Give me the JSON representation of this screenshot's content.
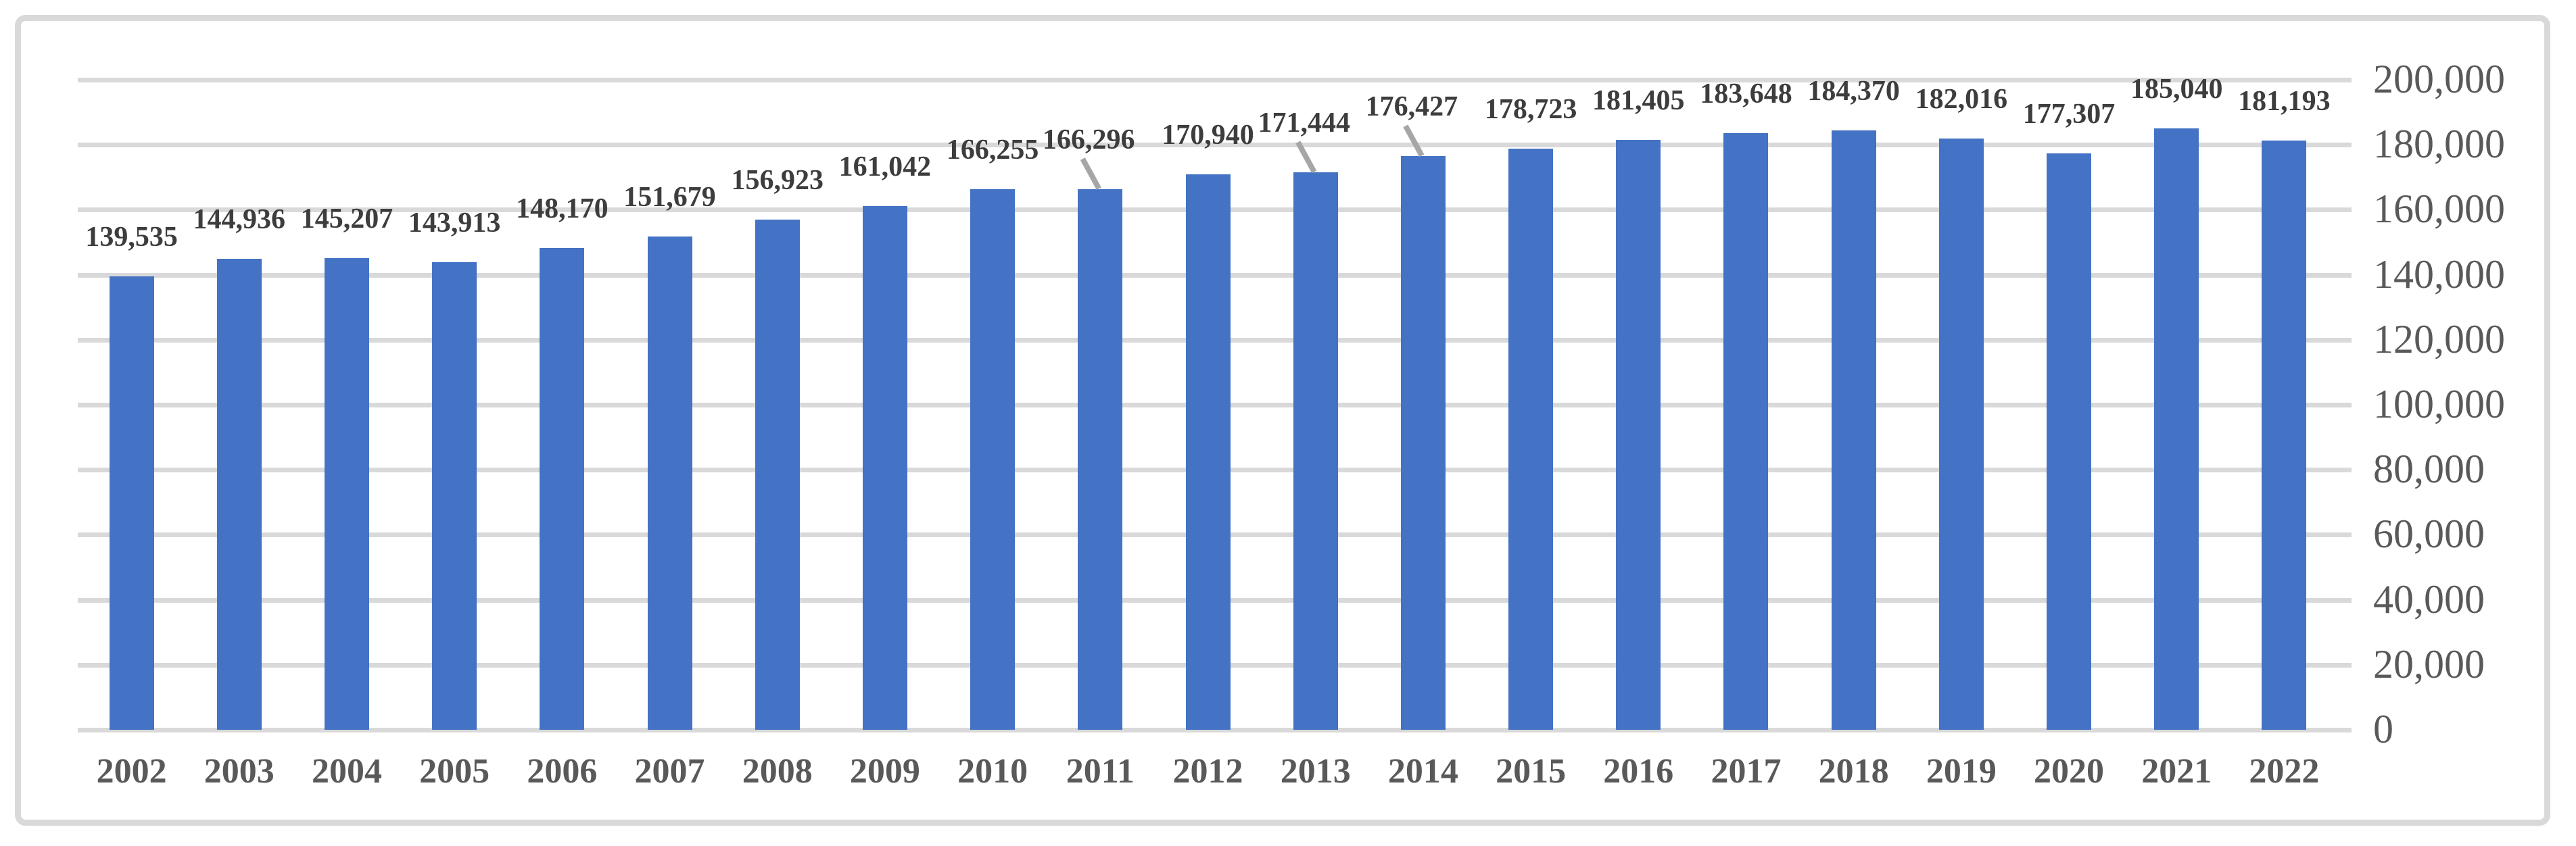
{
  "chart_data": {
    "type": "bar",
    "title": "",
    "xlabel": "",
    "ylabel": "",
    "categories": [
      "2002",
      "2003",
      "2004",
      "2005",
      "2006",
      "2007",
      "2008",
      "2009",
      "2010",
      "2011",
      "2012",
      "2013",
      "2014",
      "2015",
      "2016",
      "2017",
      "2018",
      "2019",
      "2020",
      "2021",
      "2022"
    ],
    "values": [
      139535,
      144936,
      145207,
      143913,
      148170,
      151679,
      156923,
      161042,
      166255,
      166296,
      170940,
      171444,
      176427,
      178723,
      181405,
      183648,
      184370,
      182016,
      177307,
      185040,
      181193
    ],
    "data_labels": [
      "139,535",
      "144,936",
      "145,207",
      "143,913",
      "148,170",
      "151,679",
      "156,923",
      "161,042",
      "166,255",
      "166,296",
      "170,940",
      "171,444",
      "176,427",
      "178,723",
      "181,405",
      "183,648",
      "184,370",
      "182,016",
      "177,307",
      "185,040",
      "181,193"
    ],
    "ylim": [
      0,
      200000
    ],
    "ytick_interval": 20000,
    "ytick_labels": [
      "0",
      "20,000",
      "40,000",
      "60,000",
      "80,000",
      "100,000",
      "120,000",
      "140,000",
      "160,000",
      "180,000",
      "200,000"
    ],
    "axis_position": "right",
    "grid": true,
    "legend": "none",
    "annotations": {
      "callout_years": [
        "2011",
        "2013",
        "2014"
      ]
    },
    "colors": {
      "bar": "#4472C4",
      "gridline": "#D9D9D9",
      "frame_border": "#D9D9D9",
      "axis_text": "#595959",
      "data_label_text": "#3D3D3D",
      "leader_line": "#A6A6A6",
      "background": "#FFFFFF"
    }
  }
}
